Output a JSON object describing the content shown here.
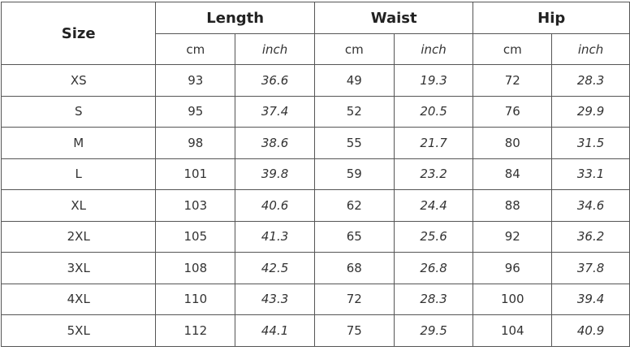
{
  "table": {
    "size_header": "Size",
    "groups": [
      "Length",
      "Waist",
      "Hip"
    ],
    "units": [
      "cm",
      "inch"
    ],
    "rows": [
      [
        "XS",
        "93",
        "36.6",
        "49",
        "19.3",
        "72",
        "28.3"
      ],
      [
        "S",
        "95",
        "37.4",
        "52",
        "20.5",
        "76",
        "29.9"
      ],
      [
        "M",
        "98",
        "38.6",
        "55",
        "21.7",
        "80",
        "31.5"
      ],
      [
        "L",
        "101",
        "39.8",
        "59",
        "23.2",
        "84",
        "33.1"
      ],
      [
        "XL",
        "103",
        "40.6",
        "62",
        "24.4",
        "88",
        "34.6"
      ],
      [
        "2XL",
        "105",
        "41.3",
        "65",
        "25.6",
        "92",
        "36.2"
      ],
      [
        "3XL",
        "108",
        "42.5",
        "68",
        "26.8",
        "96",
        "37.8"
      ],
      [
        "4XL",
        "110",
        "43.3",
        "72",
        "28.3",
        "100",
        "39.4"
      ],
      [
        "5XL",
        "112",
        "44.1",
        "75",
        "29.5",
        "104",
        "40.9"
      ]
    ]
  }
}
